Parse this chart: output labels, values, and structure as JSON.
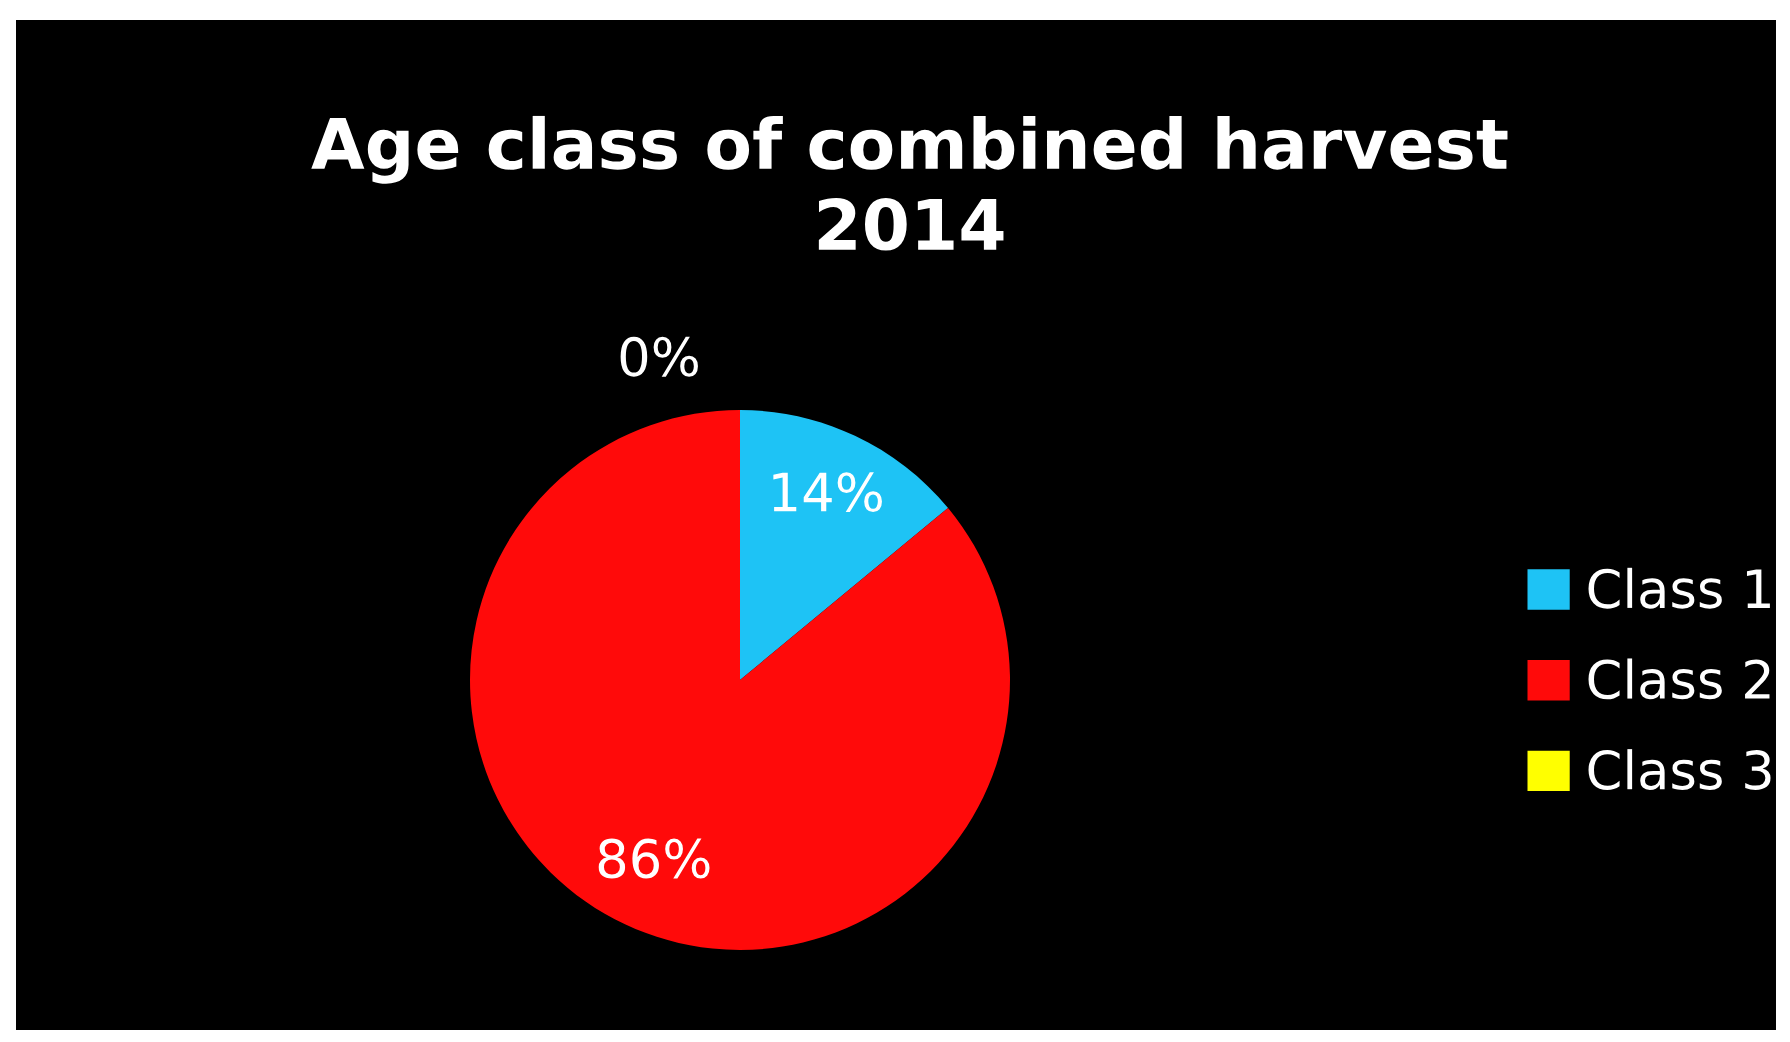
{
  "chart_data": {
    "type": "pie",
    "title": "Age class of combined harvest\n2014",
    "categories": [
      "Class 1",
      "Class 2",
      "Class 3"
    ],
    "values": [
      14,
      86,
      0
    ],
    "colors": [
      "#1ec3f5",
      "#ff0a0a",
      "#ffff00"
    ],
    "value_labels": [
      "14%",
      "86%",
      "0%"
    ],
    "legend": "right"
  }
}
